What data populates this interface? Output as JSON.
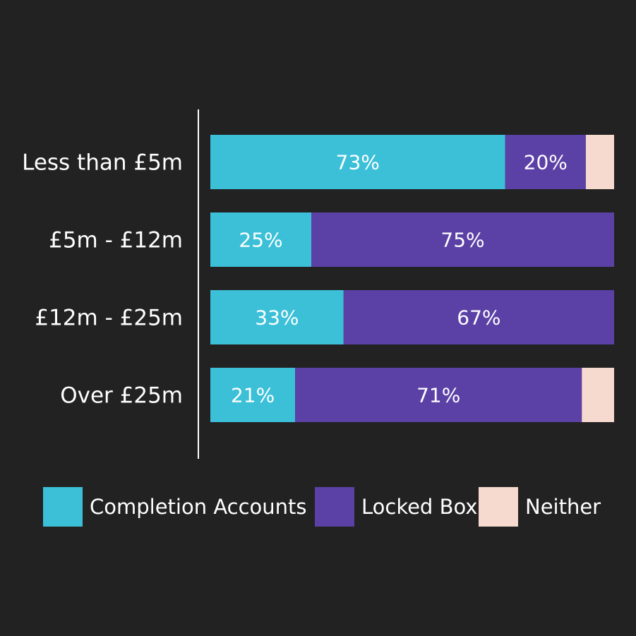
{
  "chart_data": {
    "type": "bar",
    "orientation": "horizontal",
    "stacked": true,
    "percent": true,
    "title": "",
    "xlabel": "",
    "ylabel": "",
    "xlim": [
      0,
      100
    ],
    "grid": false,
    "legend_position": "bottom",
    "categories": [
      "Less than £5m",
      "£5m - £12m",
      "£12m - £25m",
      "Over £25m"
    ],
    "series": [
      {
        "name": "Completion Accounts",
        "color": "#3cc0d8",
        "values": [
          73,
          25,
          33,
          21
        ],
        "labels": [
          "73%",
          "25%",
          "33%",
          "21%"
        ]
      },
      {
        "name": "Locked Box",
        "color": "#5b41a6",
        "values": [
          20,
          75,
          67,
          71
        ],
        "labels": [
          "20%",
          "75%",
          "67%",
          "71%"
        ]
      },
      {
        "name": "Neither",
        "color": "#f6d9cf",
        "values": [
          7,
          0,
          0,
          8
        ],
        "labels": [
          "",
          "",
          "",
          ""
        ]
      }
    ]
  }
}
